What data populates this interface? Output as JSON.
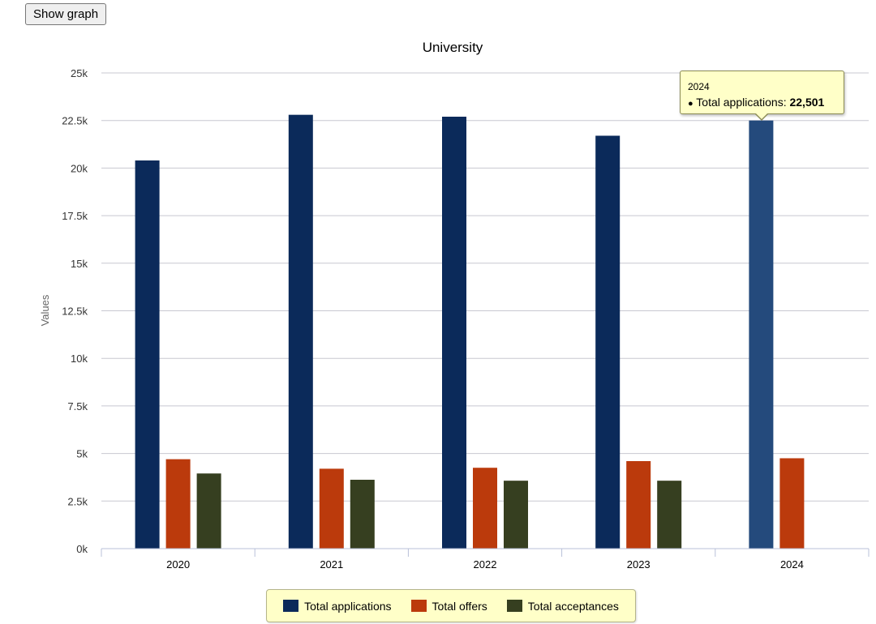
{
  "controls": {
    "show_graph_label": "Show graph"
  },
  "chart_data": {
    "type": "bar",
    "title": "University",
    "xlabel": "",
    "ylabel": "Values",
    "ylim": [
      0,
      25000
    ],
    "yticks": [
      "0k",
      "2.5k",
      "5k",
      "7.5k",
      "10k",
      "12.5k",
      "15k",
      "17.5k",
      "20k",
      "22.5k",
      "25k"
    ],
    "categories": [
      "2020",
      "2021",
      "2022",
      "2023",
      "2024"
    ],
    "series": [
      {
        "name": "Total applications",
        "color": "#0b2a5a",
        "values": [
          20400,
          22800,
          22700,
          21700,
          22501
        ]
      },
      {
        "name": "Total offers",
        "color": "#bb3a0c",
        "values": [
          4700,
          4200,
          4250,
          4600,
          4750
        ]
      },
      {
        "name": "Total acceptances",
        "color": "#363f20",
        "values": [
          3950,
          3620,
          3570,
          3570,
          null
        ]
      }
    ],
    "highlight_color": "#244a7c",
    "grid": true,
    "legend_position": "bottom-center"
  },
  "tooltip": {
    "category": "2024",
    "series_label": "Total applications:",
    "value": "22,501",
    "bullet": "●"
  }
}
